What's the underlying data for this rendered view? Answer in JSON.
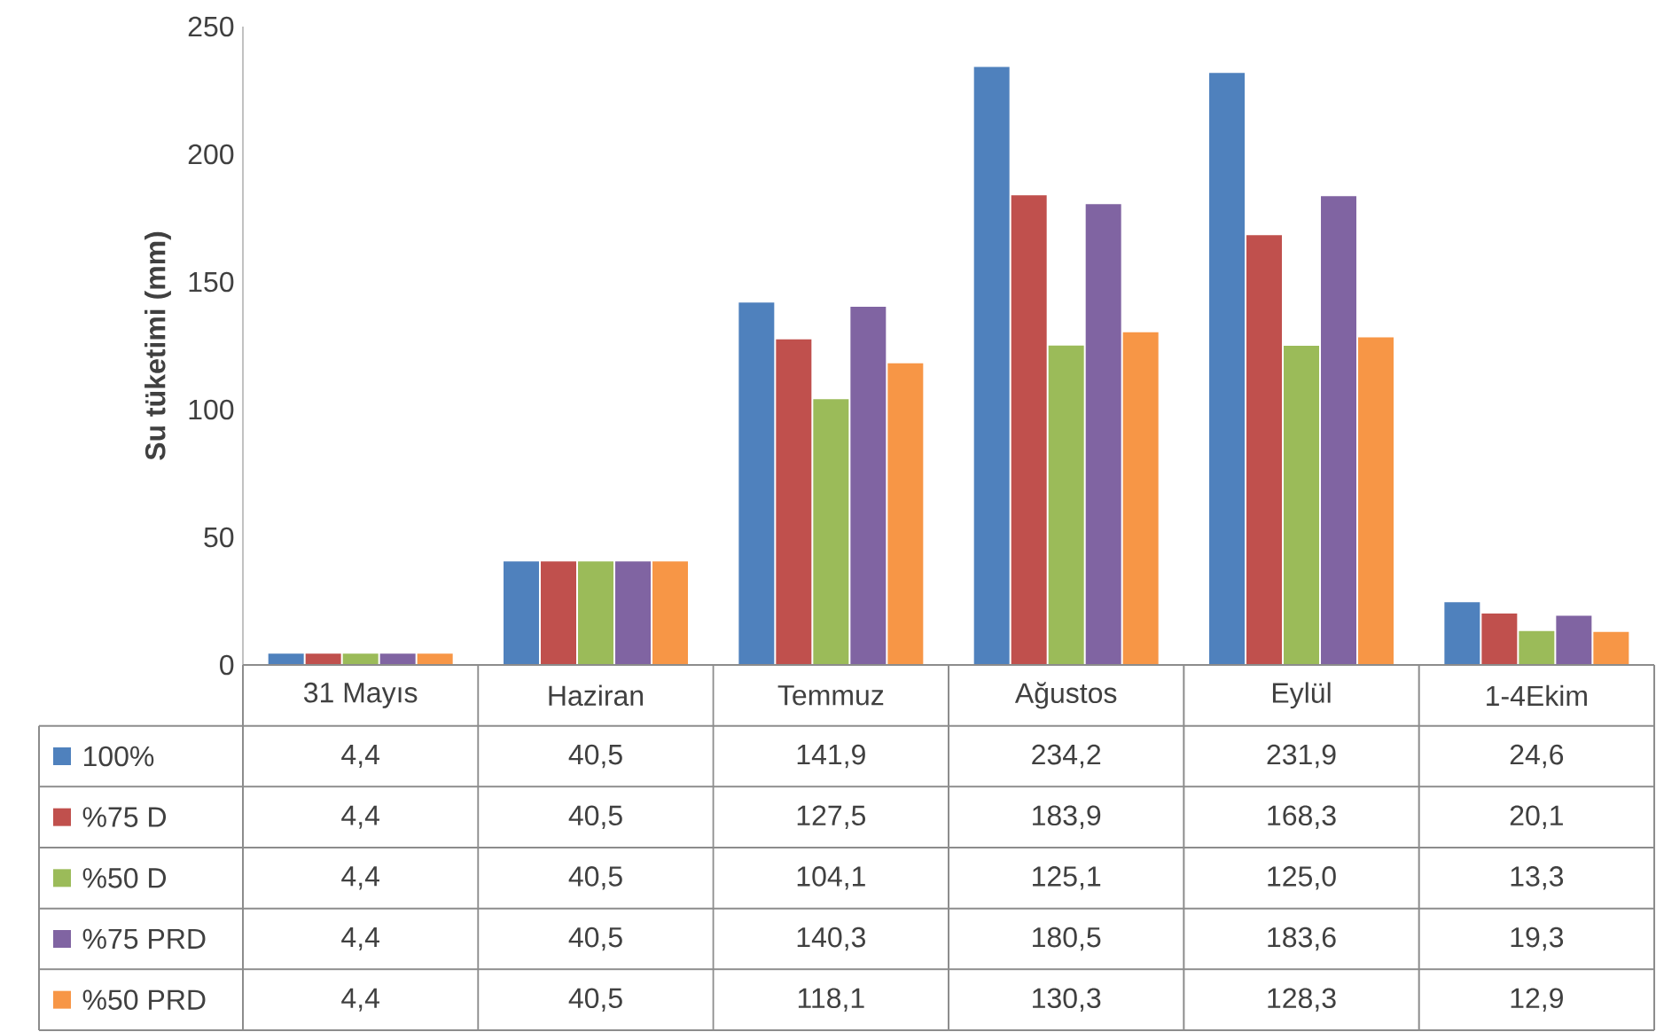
{
  "chart_data": {
    "type": "bar",
    "ylabel": "Su tüketimi (mm)",
    "categories": [
      "31 Mayıs",
      "Haziran",
      "Temmuz",
      "Ağustos",
      "Eylül",
      "1-4Ekim"
    ],
    "ylim": [
      0,
      250
    ],
    "yticks": [
      0,
      50,
      100,
      150,
      200,
      250
    ],
    "legend": "bottom",
    "series": [
      {
        "name": "100%",
        "color": "#4f81bd",
        "values": [
          4.4,
          40.5,
          141.9,
          234.2,
          231.9,
          24.6
        ],
        "value_labels": [
          "4,4",
          "40,5",
          "141,9",
          "234,2",
          "231,9",
          "24,6"
        ]
      },
      {
        "name": "%75 D",
        "color": "#c0504d",
        "values": [
          4.4,
          40.5,
          127.5,
          183.9,
          168.3,
          20.1
        ],
        "value_labels": [
          "4,4",
          "40,5",
          "127,5",
          "183,9",
          "168,3",
          "20,1"
        ]
      },
      {
        "name": "%50 D",
        "color": "#9bbb59",
        "values": [
          4.4,
          40.5,
          104.1,
          125.1,
          125.0,
          13.3
        ],
        "value_labels": [
          "4,4",
          "40,5",
          "104,1",
          "125,1",
          "125,0",
          "13,3"
        ]
      },
      {
        "name": "%75 PRD",
        "color": "#8064a2",
        "values": [
          4.4,
          40.5,
          140.3,
          180.5,
          183.6,
          19.3
        ],
        "value_labels": [
          "4,4",
          "40,5",
          "140,3",
          "180,5",
          "183,6",
          "19,3"
        ]
      },
      {
        "name": "%50 PRD",
        "color": "#f79646",
        "values": [
          4.4,
          40.5,
          118.1,
          130.3,
          128.3,
          12.9
        ],
        "value_labels": [
          "4,4",
          "40,5",
          "118,1",
          "130,3",
          "128,3",
          "12,9"
        ]
      }
    ]
  }
}
